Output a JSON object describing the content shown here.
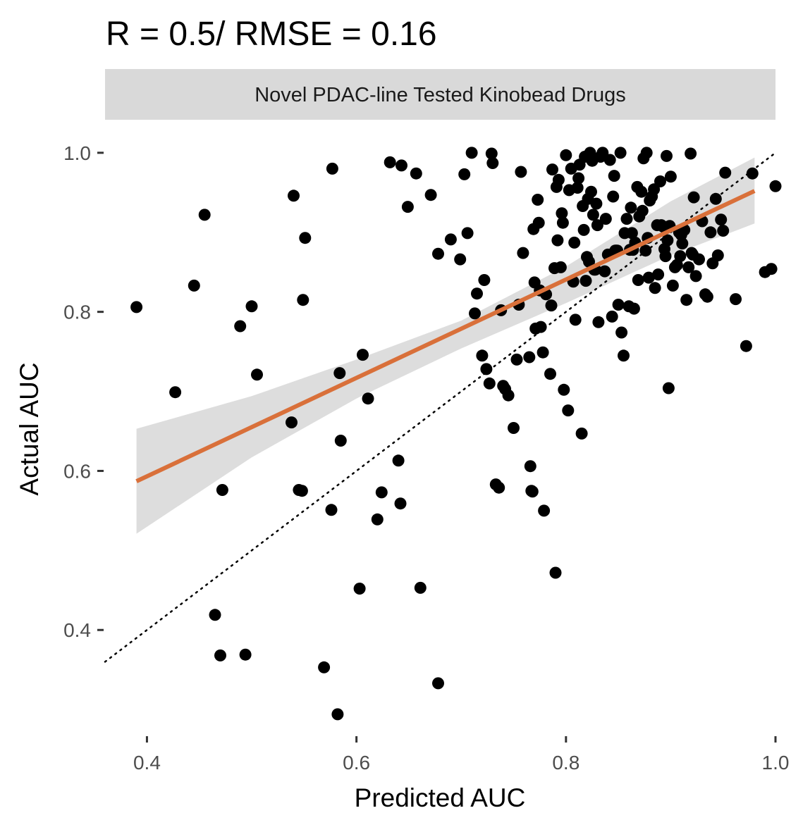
{
  "chart_data": {
    "type": "scatter",
    "title": "R = 0.5/ RMSE = 0.16",
    "facet_label": "Novel PDAC-line Tested Kinobead Drugs",
    "xlabel": "Predicted AUC",
    "ylabel": "Actual AUC",
    "xlim": [
      0.36,
      1.0
    ],
    "ylim": [
      0.27,
      1.03
    ],
    "x_ticks": [
      0.4,
      0.6,
      0.8,
      1.0
    ],
    "x_tick_labels": [
      "0.4",
      "0.6",
      "0.8",
      "1.0"
    ],
    "y_ticks": [
      0.4,
      0.6,
      0.8,
      1.0
    ],
    "y_tick_labels": [
      "0.4",
      "0.6",
      "0.8",
      "1.0"
    ],
    "grid": false,
    "colors": {
      "points": "#000000",
      "fit_line": "#d9703a",
      "confidence_band": "#d9d9d9",
      "strip_background": "#d9d9d9"
    },
    "identity_line": {
      "style": "dotted",
      "from": [
        0.36,
        0.36
      ],
      "to": [
        1.0,
        1.0
      ]
    },
    "fit_line": {
      "x": [
        0.39,
        0.98
      ],
      "y": [
        0.587,
        0.952
      ]
    },
    "confidence_band": {
      "x": [
        0.39,
        0.5,
        0.6,
        0.7,
        0.8,
        0.9,
        0.98
      ],
      "lower": [
        0.521,
        0.617,
        0.691,
        0.754,
        0.811,
        0.871,
        0.911
      ],
      "upper": [
        0.653,
        0.694,
        0.74,
        0.789,
        0.857,
        0.939,
        0.994
      ]
    },
    "points": [
      [
        0.39,
        0.806
      ],
      [
        0.427,
        0.699
      ],
      [
        0.445,
        0.833
      ],
      [
        0.455,
        0.922
      ],
      [
        0.465,
        0.419
      ],
      [
        0.47,
        0.368
      ],
      [
        0.472,
        0.576
      ],
      [
        0.489,
        0.782
      ],
      [
        0.494,
        0.369
      ],
      [
        0.5,
        0.807
      ],
      [
        0.505,
        0.721
      ],
      [
        0.538,
        0.661
      ],
      [
        0.54,
        0.946
      ],
      [
        0.545,
        0.576
      ],
      [
        0.548,
        0.575
      ],
      [
        0.549,
        0.815
      ],
      [
        0.551,
        0.893
      ],
      [
        0.569,
        0.353
      ],
      [
        0.576,
        0.551
      ],
      [
        0.577,
        0.98
      ],
      [
        0.582,
        0.294
      ],
      [
        0.584,
        0.723
      ],
      [
        0.585,
        0.638
      ],
      [
        0.603,
        0.452
      ],
      [
        0.606,
        0.746
      ],
      [
        0.611,
        0.691
      ],
      [
        0.62,
        0.539
      ],
      [
        0.624,
        0.573
      ],
      [
        0.632,
        0.988
      ],
      [
        0.64,
        0.613
      ],
      [
        0.642,
        0.559
      ],
      [
        0.643,
        0.984
      ],
      [
        0.649,
        0.932
      ],
      [
        0.657,
        0.974
      ],
      [
        0.661,
        0.453
      ],
      [
        0.671,
        0.947
      ],
      [
        0.678,
        0.873
      ],
      [
        0.678,
        0.333
      ],
      [
        0.69,
        0.891
      ],
      [
        0.699,
        0.866
      ],
      [
        0.703,
        0.973
      ],
      [
        0.706,
        0.899
      ],
      [
        0.71,
        1.0
      ],
      [
        0.713,
        0.798
      ],
      [
        0.715,
        0.823
      ],
      [
        0.72,
        0.745
      ],
      [
        0.722,
        0.84
      ],
      [
        0.724,
        0.728
      ],
      [
        0.727,
        0.71
      ],
      [
        0.729,
        0.999
      ],
      [
        0.73,
        0.987
      ],
      [
        0.733,
        0.583
      ],
      [
        0.736,
        0.579
      ],
      [
        0.738,
        0.802
      ],
      [
        0.74,
        0.707
      ],
      [
        0.742,
        0.703
      ],
      [
        0.745,
        0.695
      ],
      [
        0.75,
        0.654
      ],
      [
        0.753,
        0.74
      ],
      [
        0.755,
        0.809
      ],
      [
        0.757,
        0.976
      ],
      [
        0.759,
        0.874
      ],
      [
        0.765,
        0.743
      ],
      [
        0.766,
        0.606
      ],
      [
        0.767,
        0.575
      ],
      [
        0.768,
        0.574
      ],
      [
        0.769,
        0.904
      ],
      [
        0.77,
        0.837
      ],
      [
        0.771,
        0.779
      ],
      [
        0.773,
        0.941
      ],
      [
        0.774,
        0.912
      ],
      [
        0.775,
        0.827
      ],
      [
        0.776,
        0.781
      ],
      [
        0.778,
        0.749
      ],
      [
        0.779,
        0.55
      ],
      [
        0.781,
        0.822
      ],
      [
        0.785,
        0.722
      ],
      [
        0.786,
        0.808
      ],
      [
        0.787,
        0.979
      ],
      [
        0.789,
        0.855
      ],
      [
        0.79,
        0.472
      ],
      [
        0.791,
        0.957
      ],
      [
        0.792,
        0.89
      ],
      [
        0.793,
        0.966
      ],
      [
        0.795,
        0.856
      ],
      [
        0.796,
        0.924
      ],
      [
        0.797,
        0.912
      ],
      [
        0.798,
        0.702
      ],
      [
        0.8,
        0.997
      ],
      [
        0.802,
        0.676
      ],
      [
        0.803,
        0.953
      ],
      [
        0.805,
        0.98
      ],
      [
        0.807,
        0.838
      ],
      [
        0.808,
        0.887
      ],
      [
        0.809,
        0.79
      ],
      [
        0.811,
        0.956
      ],
      [
        0.812,
        0.968
      ],
      [
        0.813,
        0.985
      ],
      [
        0.815,
        0.647
      ],
      [
        0.816,
        0.933
      ],
      [
        0.817,
        0.903
      ],
      [
        0.818,
        0.995
      ],
      [
        0.819,
        0.839
      ],
      [
        0.82,
        0.869
      ],
      [
        0.821,
        0.942
      ],
      [
        0.822,
        0.863
      ],
      [
        0.823,
        1.0
      ],
      [
        0.824,
        0.951
      ],
      [
        0.825,
        0.99
      ],
      [
        0.826,
        0.922
      ],
      [
        0.827,
        0.853
      ],
      [
        0.828,
        0.853
      ],
      [
        0.829,
        0.936
      ],
      [
        0.83,
        0.909
      ],
      [
        0.831,
        0.787
      ],
      [
        0.833,
        0.995
      ],
      [
        0.835,
        1.0
      ],
      [
        0.837,
        0.851
      ],
      [
        0.838,
        0.917
      ],
      [
        0.84,
        0.872
      ],
      [
        0.842,
        0.991
      ],
      [
        0.844,
        0.794
      ],
      [
        0.845,
        0.945
      ],
      [
        0.846,
        0.971
      ],
      [
        0.847,
        0.877
      ],
      [
        0.848,
        0.877
      ],
      [
        0.849,
        0.877
      ],
      [
        0.85,
        0.809
      ],
      [
        0.852,
        1.0
      ],
      [
        0.853,
        0.774
      ],
      [
        0.855,
        0.745
      ],
      [
        0.856,
        0.899
      ],
      [
        0.858,
        0.917
      ],
      [
        0.86,
        0.807
      ],
      [
        0.861,
        0.878
      ],
      [
        0.862,
        0.931
      ],
      [
        0.863,
        0.899
      ],
      [
        0.864,
        0.878
      ],
      [
        0.865,
        0.804
      ],
      [
        0.866,
        0.887
      ],
      [
        0.868,
        0.957
      ],
      [
        0.869,
        0.84
      ],
      [
        0.87,
        0.92
      ],
      [
        0.872,
        0.951
      ],
      [
        0.873,
        0.927
      ],
      [
        0.874,
        0.993
      ],
      [
        0.876,
        0.877
      ],
      [
        0.877,
        1.0
      ],
      [
        0.878,
        0.893
      ],
      [
        0.879,
        0.843
      ],
      [
        0.88,
        0.94
      ],
      [
        0.882,
        0.945
      ],
      [
        0.884,
        0.954
      ],
      [
        0.885,
        0.83
      ],
      [
        0.887,
        0.909
      ],
      [
        0.888,
        0.847
      ],
      [
        0.89,
        0.964
      ],
      [
        0.891,
        0.909
      ],
      [
        0.893,
        0.907
      ],
      [
        0.894,
        0.879
      ],
      [
        0.895,
        0.87
      ],
      [
        0.896,
        0.996
      ],
      [
        0.897,
        0.89
      ],
      [
        0.898,
        0.704
      ],
      [
        0.899,
        0.908
      ],
      [
        0.9,
        0.97
      ],
      [
        0.902,
        0.833
      ],
      [
        0.904,
        0.856
      ],
      [
        0.906,
        0.859
      ],
      [
        0.908,
        0.9
      ],
      [
        0.909,
        0.87
      ],
      [
        0.91,
        0.897
      ],
      [
        0.911,
        0.886
      ],
      [
        0.913,
        0.903
      ],
      [
        0.915,
        0.815
      ],
      [
        0.917,
        0.856
      ],
      [
        0.919,
        0.999
      ],
      [
        0.92,
        0.874
      ],
      [
        0.921,
        0.872
      ],
      [
        0.922,
        0.944
      ],
      [
        0.924,
        0.845
      ],
      [
        0.927,
        0.866
      ],
      [
        0.93,
        0.914
      ],
      [
        0.933,
        0.822
      ],
      [
        0.935,
        0.819
      ],
      [
        0.938,
        0.9
      ],
      [
        0.94,
        0.861
      ],
      [
        0.943,
        0.942
      ],
      [
        0.945,
        0.871
      ],
      [
        0.948,
        0.916
      ],
      [
        0.95,
        0.902
      ],
      [
        0.952,
        0.975
      ],
      [
        0.962,
        0.816
      ],
      [
        0.972,
        0.757
      ],
      [
        0.978,
        0.974
      ],
      [
        0.99,
        0.85
      ],
      [
        0.996,
        0.854
      ],
      [
        1.0,
        0.958
      ]
    ]
  }
}
